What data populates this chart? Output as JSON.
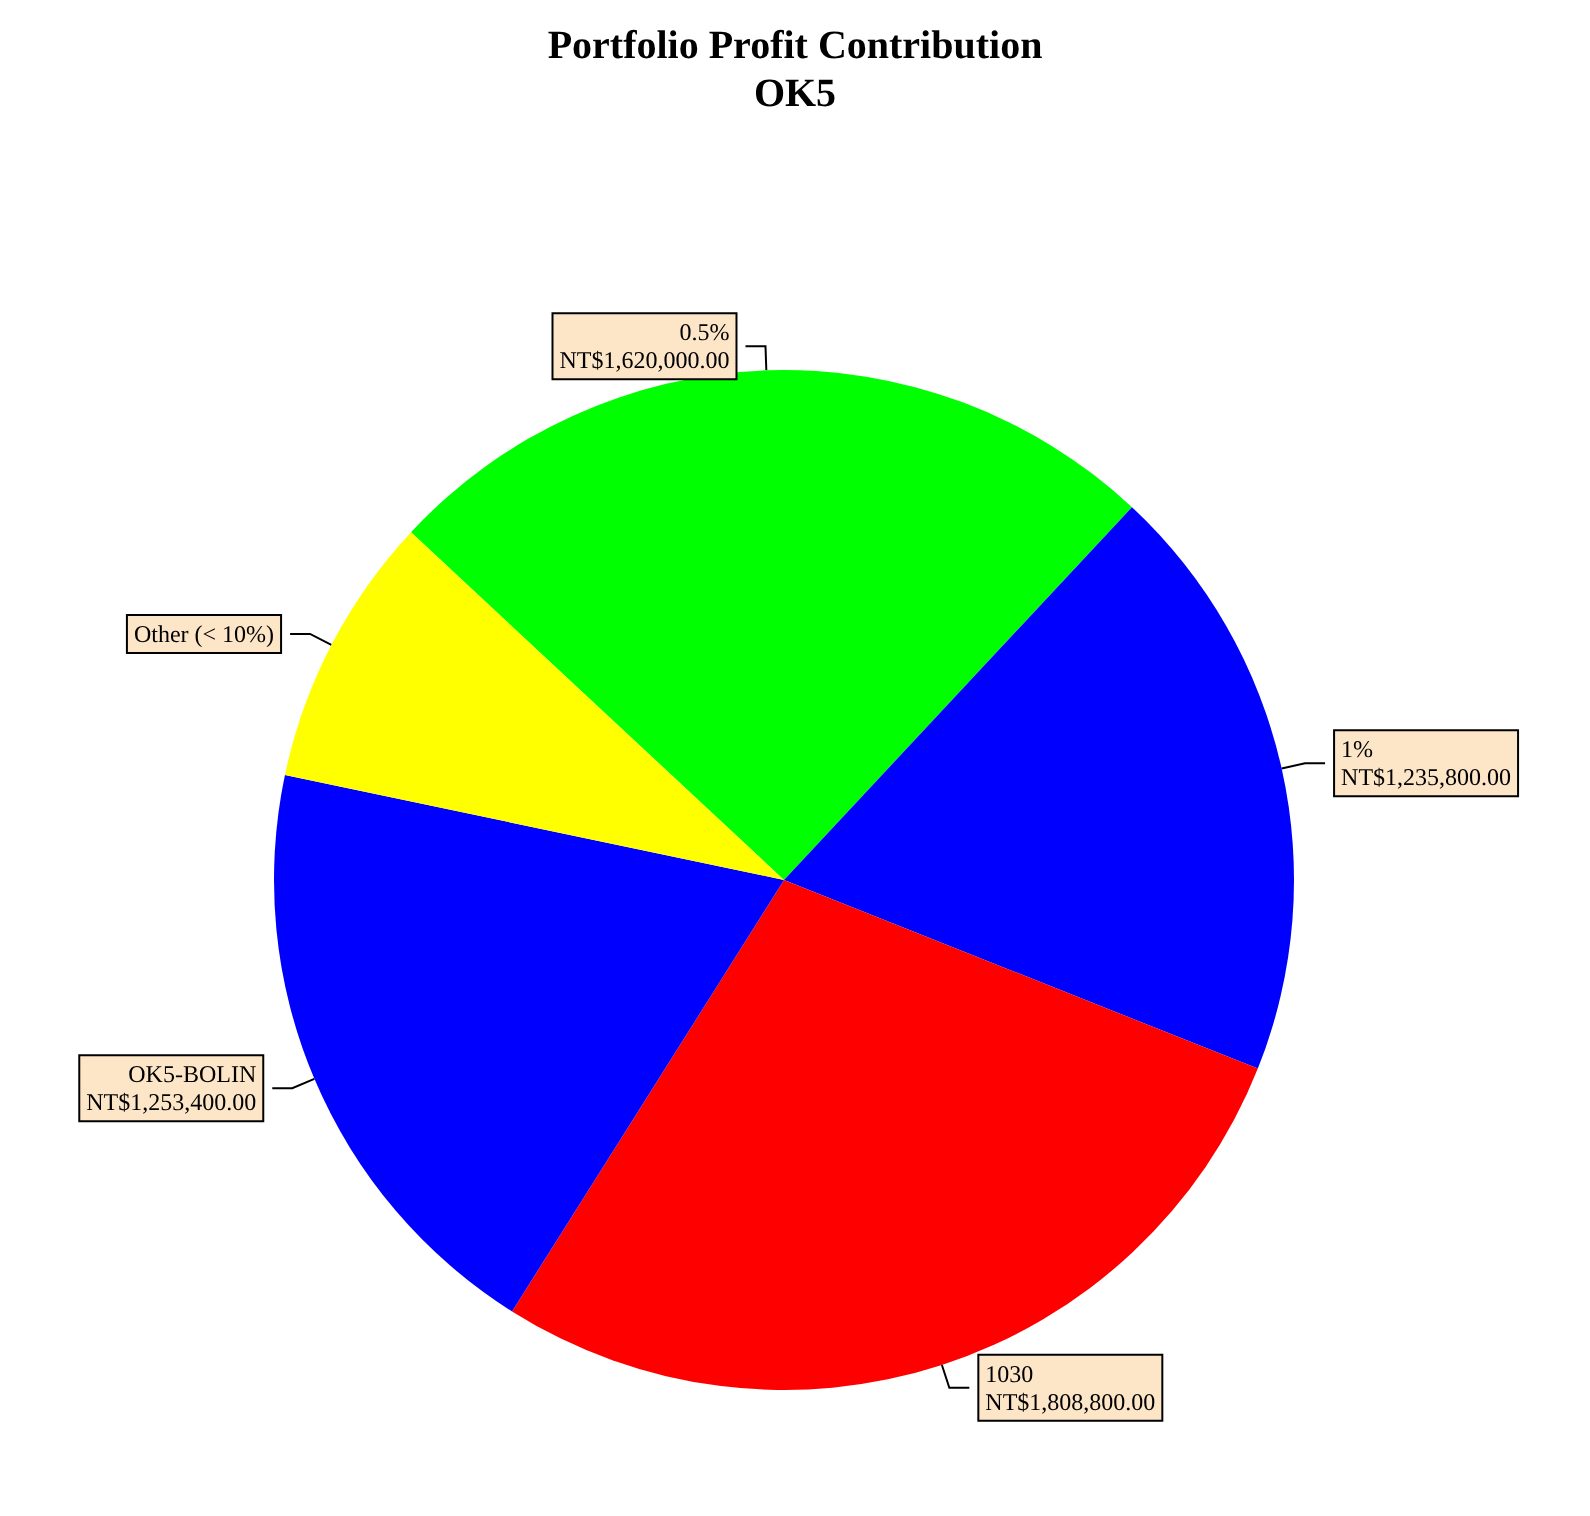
{
  "chart_data": {
    "type": "pie",
    "title": "Portfolio Profit Contribution",
    "subtitle": "OK5",
    "categories": [
      "0.5%",
      "1%",
      "1030",
      "OK5-BOLIN",
      "Other (< 10%)"
    ],
    "values": [
      1620000,
      1235800,
      1808800,
      1253400,
      560000
    ],
    "value_labels": [
      "NT$1,620,000.00",
      "NT$1,235,800.00",
      "NT$1,808,800.00",
      "NT$1,253,400.00",
      null
    ],
    "colors": [
      "#00ff00",
      "#0000ff",
      "#ff0000",
      "#0000ff",
      "#ffff00"
    ],
    "legend": false
  }
}
